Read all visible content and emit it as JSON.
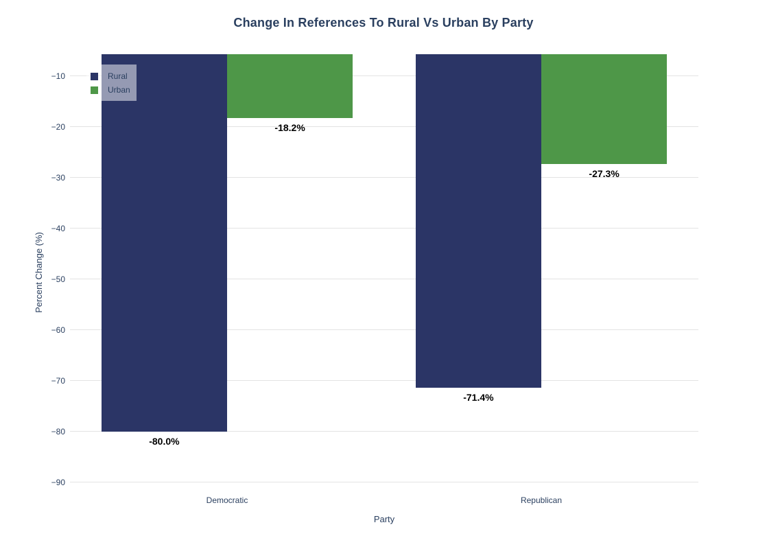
{
  "chart_data": {
    "type": "bar",
    "title": "Change In References To Rural Vs Urban By Party",
    "xlabel": "Party",
    "ylabel": "Percent Change (%)",
    "categories": [
      "Democratic",
      "Republican"
    ],
    "series": [
      {
        "name": "Rural",
        "color": "#2b3566",
        "values": [
          -80.0,
          -71.4
        ],
        "value_labels": [
          "-80.0%",
          "-71.4%"
        ]
      },
      {
        "name": "Urban",
        "color": "#4e9748",
        "values": [
          -18.2,
          -27.3
        ],
        "value_labels": [
          "-18.2%",
          "-27.3%"
        ]
      }
    ],
    "ylim": [
      -91.5,
      -5.7
    ],
    "yticks": [
      -10,
      -20,
      -30,
      -40,
      -50,
      -60,
      -70,
      -80,
      -90
    ],
    "ytick_labels": [
      "−10",
      "−20",
      "−30",
      "−40",
      "−50",
      "−60",
      "−70",
      "−80",
      "−90"
    ],
    "grid": true,
    "legend_position": "top-left",
    "colors": {
      "text": "#2a3f5f",
      "grid": "#e3e3e3",
      "value_label": "#000000",
      "background": "#ffffff"
    }
  }
}
